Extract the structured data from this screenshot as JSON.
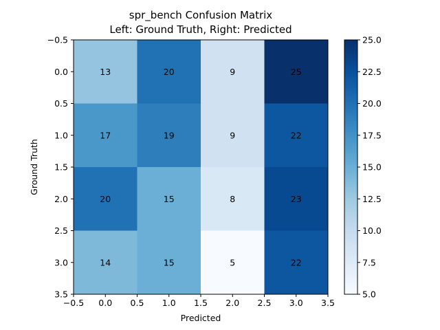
{
  "chart_data": {
    "type": "heatmap",
    "title": "spr_bench Confusion Matrix",
    "subtitle": "Left: Ground Truth, Right: Predicted",
    "xlabel": "Predicted",
    "ylabel": "Ground Truth",
    "xlim": [
      -0.5,
      3.5
    ],
    "ylim": [
      3.5,
      -0.5
    ],
    "x_ticks": [
      "−0.5",
      "0.0",
      "0.5",
      "1.0",
      "1.5",
      "2.0",
      "2.5",
      "3.0",
      "3.5"
    ],
    "y_ticks": [
      "−0.5",
      "0.0",
      "0.5",
      "1.0",
      "1.5",
      "2.0",
      "2.5",
      "3.0",
      "3.5"
    ],
    "matrix": [
      [
        13,
        20,
        9,
        25
      ],
      [
        17,
        19,
        9,
        22
      ],
      [
        20,
        15,
        8,
        23
      ],
      [
        14,
        15,
        5,
        22
      ]
    ],
    "colorbar": {
      "colormap": "Blues",
      "min": 5,
      "max": 25,
      "ticks": [
        "5.0",
        "7.5",
        "10.0",
        "12.5",
        "15.0",
        "17.5",
        "20.0",
        "22.5",
        "25.0"
      ]
    }
  }
}
